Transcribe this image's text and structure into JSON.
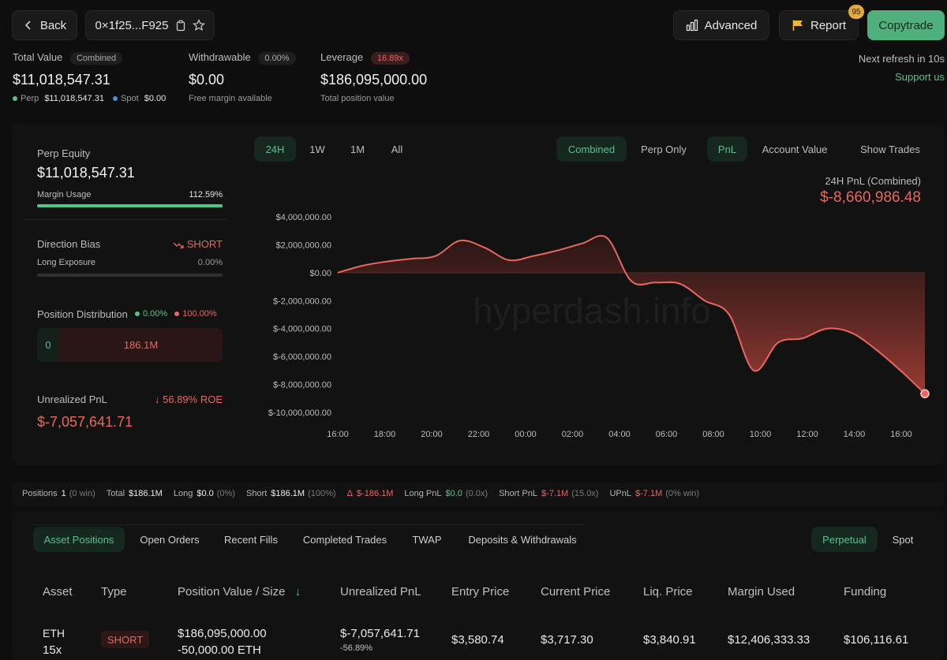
{
  "nav": {
    "back_label": "Back",
    "address": "0×1f25...F925",
    "advanced_label": "Advanced",
    "report_label": "Report",
    "report_badge": "95",
    "copytrade_label": "Copytrade"
  },
  "summary": {
    "total_value_label": "Total Value",
    "total_value_pill": "Combined",
    "total_value": "$11,018,547.31",
    "perp_label": "Perp",
    "perp_value": "$11,018,547.31",
    "spot_label": "Spot",
    "spot_value": "$0.00",
    "withdrawable_label": "Withdrawable",
    "withdrawable_pill": "0.00%",
    "withdrawable_value": "$0.00",
    "withdrawable_sub": "Free margin available",
    "leverage_label": "Leverage",
    "leverage_pill": "16.89x",
    "leverage_value": "$186,095,000.00",
    "leverage_sub": "Total position value",
    "refresh_text": "Next refresh in 10s",
    "support_text": "Support us"
  },
  "left_panel": {
    "perp_equity_label": "Perp Equity",
    "perp_equity_value": "$11,018,547.31",
    "margin_usage_label": "Margin Usage",
    "margin_usage_value": "112.59%",
    "margin_usage_fraction": 1.0,
    "direction_bias_label": "Direction Bias",
    "direction_bias_value": "SHORT",
    "long_exposure_label": "Long Exposure",
    "long_exposure_value": "0.00%",
    "position_distribution_label": "Position Distribution",
    "dist_long_pct": "0.00%",
    "dist_short_pct": "100.00%",
    "dist_long_value": "0",
    "dist_short_value": "186.1M",
    "unrealized_pnl_label": "Unrealized PnL",
    "roe_text": "56.89% ROE",
    "unrealized_pnl_value": "$-7,057,641.71"
  },
  "chart_controls": {
    "ranges": [
      "24H",
      "1W",
      "1M",
      "All"
    ],
    "modes": [
      "Combined",
      "Perp Only"
    ],
    "metrics": [
      "PnL",
      "Account Value"
    ],
    "show_trades": "Show Trades"
  },
  "chart_header": {
    "title": "24H PnL (Combined)",
    "value": "$-8,660,986.48",
    "watermark": "hyperdash.info"
  },
  "chart_data": {
    "type": "area",
    "title": "24H PnL (Combined)",
    "xlabel": "",
    "ylabel": "",
    "ylim": [
      -10000000,
      4000000
    ],
    "yticks": [
      "$4,000,000.00",
      "$2,000,000.00",
      "$0.00",
      "$-2,000,000.00",
      "$-4,000,000.00",
      "$-6,000,000.00",
      "$-8,000,000.00",
      "$-10,000,000.00"
    ],
    "ytick_values": [
      4000000,
      2000000,
      0,
      -2000000,
      -4000000,
      -6000000,
      -8000000,
      -10000000
    ],
    "xticks": [
      "16:00",
      "18:00",
      "20:00",
      "22:00",
      "00:00",
      "02:00",
      "04:00",
      "06:00",
      "08:00",
      "10:00",
      "12:00",
      "14:00",
      "16:00"
    ],
    "x": [
      0,
      1,
      2,
      3,
      4,
      5,
      6,
      7,
      8,
      9,
      10,
      11,
      12,
      13,
      14,
      15,
      16,
      17,
      18,
      19,
      20,
      21,
      22,
      23,
      24
    ],
    "values": [
      0,
      500000,
      800000,
      1000000,
      1200000,
      2300000,
      1800000,
      900000,
      1200000,
      1600000,
      2100000,
      2500000,
      -600000,
      -700000,
      -800000,
      -2000000,
      -3000000,
      -7000000,
      -5000000,
      -4700000,
      -4000000,
      -4300000,
      -5500000,
      -7000000,
      -8660986
    ]
  },
  "stats_bar": {
    "items": [
      {
        "label": "Positions",
        "value": "1",
        "extra": "(0 win)"
      },
      {
        "label": "Total",
        "value": "$186.1M",
        "extra": ""
      },
      {
        "label": "Long",
        "value": "$0.0",
        "extra": "(0%)"
      },
      {
        "label": "Short",
        "value": "$186.1M",
        "extra": "(100%)"
      },
      {
        "label": "Δ",
        "value": "$-186.1M",
        "extra": ""
      },
      {
        "label": "Long PnL",
        "value": "$0.0",
        "extra": "(0.0x)"
      },
      {
        "label": "Short PnL",
        "value": "$-7.1M",
        "extra": "(15.0x)"
      },
      {
        "label": "UPnL",
        "value": "$-7.1M",
        "extra": "(0% win)"
      }
    ]
  },
  "tabs": {
    "items": [
      "Asset Positions",
      "Open Orders",
      "Recent Fills",
      "Completed Trades",
      "TWAP",
      "Deposits & Withdrawals"
    ],
    "market": [
      "Perpetual",
      "Spot"
    ]
  },
  "table": {
    "headers": [
      "Asset",
      "Type",
      "Position Value / Size",
      "Unrealized PnL",
      "Entry Price",
      "Current Price",
      "Liq. Price",
      "Margin Used",
      "Funding"
    ],
    "rows": [
      {
        "asset": "ETH",
        "leverage": "15x",
        "type": "SHORT",
        "position_value": "$186,095,000.00",
        "size": "-50,000.00 ETH",
        "pnl": "$-7,057,641.71",
        "pnl_pct": "-56.89%",
        "entry": "$3,580.74",
        "current": "$3,717.30",
        "liq": "$3,840.91",
        "margin": "$12,406,333.33",
        "funding": "$106,116.61"
      }
    ]
  },
  "colors": {
    "accent_green": "#57c28b",
    "negative_red": "#e8675f",
    "copytrade_bg": "#4fb07d"
  }
}
